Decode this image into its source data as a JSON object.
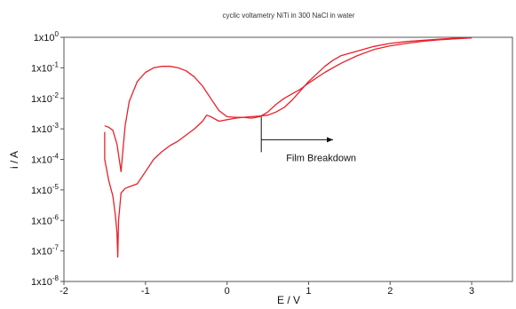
{
  "chart_data": {
    "type": "line",
    "title": "cyclic voltametry NiTi in 300 NaCl in water",
    "xlabel": "E / V",
    "ylabel": "i / A",
    "xlim": [
      -2,
      3.5
    ],
    "ylim_log10": [
      -8,
      0
    ],
    "y_scale": "log",
    "grid": false,
    "legend": "none",
    "color": "#e8202a",
    "x_ticks": [
      {
        "value": -2,
        "label": "-2"
      },
      {
        "value": -1,
        "label": "-1"
      },
      {
        "value": 0,
        "label": "0"
      },
      {
        "value": 1,
        "label": "1"
      },
      {
        "value": 2,
        "label": "2"
      },
      {
        "value": 3,
        "label": "3"
      }
    ],
    "y_ticks": [
      {
        "exp": 0,
        "base": "1x10",
        "sup": "0"
      },
      {
        "exp": -1,
        "base": "1x10",
        "sup": "-1"
      },
      {
        "exp": -2,
        "base": "1x10",
        "sup": "-2"
      },
      {
        "exp": -3,
        "base": "1x10",
        "sup": "-3"
      },
      {
        "exp": -4,
        "base": "1x10",
        "sup": "-4"
      },
      {
        "exp": -5,
        "base": "1x10",
        "sup": "-5"
      },
      {
        "exp": -6,
        "base": "1x10",
        "sup": "-6"
      },
      {
        "exp": -7,
        "base": "1x10",
        "sup": "-7"
      },
      {
        "exp": -8,
        "base": "1x10",
        "sup": "-8"
      }
    ],
    "series": [
      {
        "points_E_log10i": [
          [
            -1.5,
            -3.1
          ],
          [
            -1.5,
            -4.0
          ],
          [
            -1.45,
            -4.7
          ],
          [
            -1.4,
            -5.2
          ],
          [
            -1.37,
            -5.8
          ],
          [
            -1.35,
            -6.4
          ],
          [
            -1.34,
            -7.2
          ],
          [
            -1.33,
            -6.0
          ],
          [
            -1.3,
            -5.1
          ],
          [
            -1.25,
            -4.95
          ],
          [
            -1.2,
            -4.9
          ],
          [
            -1.1,
            -4.8
          ],
          [
            -1.0,
            -4.4
          ],
          [
            -0.9,
            -4.0
          ],
          [
            -0.8,
            -3.75
          ],
          [
            -0.7,
            -3.55
          ],
          [
            -0.6,
            -3.4
          ],
          [
            -0.5,
            -3.2
          ],
          [
            -0.4,
            -3.0
          ],
          [
            -0.3,
            -2.75
          ],
          [
            -0.25,
            -2.55
          ],
          [
            -0.2,
            -2.6
          ],
          [
            -0.1,
            -2.75
          ],
          [
            0.0,
            -2.7
          ],
          [
            0.1,
            -2.65
          ],
          [
            0.2,
            -2.62
          ],
          [
            0.3,
            -2.65
          ],
          [
            0.4,
            -2.6
          ],
          [
            0.5,
            -2.45
          ],
          [
            0.6,
            -2.2
          ],
          [
            0.7,
            -2.0
          ],
          [
            0.8,
            -1.85
          ],
          [
            0.9,
            -1.7
          ],
          [
            1.0,
            -1.5
          ],
          [
            1.2,
            -1.15
          ],
          [
            1.4,
            -0.85
          ],
          [
            1.6,
            -0.6
          ],
          [
            1.8,
            -0.4
          ],
          [
            2.0,
            -0.28
          ],
          [
            2.2,
            -0.2
          ],
          [
            2.4,
            -0.13
          ],
          [
            2.6,
            -0.08
          ],
          [
            2.8,
            -0.05
          ],
          [
            3.0,
            -0.02
          ]
        ]
      },
      {
        "points_E_log10i": [
          [
            3.0,
            -0.02
          ],
          [
            2.8,
            -0.03
          ],
          [
            2.6,
            -0.06
          ],
          [
            2.4,
            -0.1
          ],
          [
            2.2,
            -0.14
          ],
          [
            2.0,
            -0.2
          ],
          [
            1.8,
            -0.3
          ],
          [
            1.6,
            -0.45
          ],
          [
            1.4,
            -0.6
          ],
          [
            1.3,
            -0.75
          ],
          [
            1.2,
            -0.95
          ],
          [
            1.1,
            -1.2
          ],
          [
            1.0,
            -1.45
          ],
          [
            0.9,
            -1.75
          ],
          [
            0.8,
            -2.05
          ],
          [
            0.7,
            -2.3
          ],
          [
            0.6,
            -2.45
          ],
          [
            0.5,
            -2.55
          ],
          [
            0.4,
            -2.58
          ],
          [
            0.3,
            -2.6
          ],
          [
            0.2,
            -2.62
          ],
          [
            0.1,
            -2.62
          ],
          [
            0.0,
            -2.6
          ],
          [
            -0.1,
            -2.4
          ],
          [
            -0.2,
            -2.0
          ],
          [
            -0.3,
            -1.6
          ],
          [
            -0.4,
            -1.3
          ],
          [
            -0.5,
            -1.1
          ],
          [
            -0.6,
            -1.0
          ],
          [
            -0.7,
            -0.95
          ],
          [
            -0.8,
            -0.95
          ],
          [
            -0.9,
            -1.0
          ],
          [
            -1.0,
            -1.15
          ],
          [
            -1.1,
            -1.45
          ],
          [
            -1.2,
            -2.1
          ],
          [
            -1.25,
            -2.9
          ],
          [
            -1.28,
            -3.8
          ],
          [
            -1.3,
            -4.4
          ],
          [
            -1.35,
            -3.5
          ],
          [
            -1.4,
            -3.05
          ],
          [
            -1.45,
            -2.95
          ],
          [
            -1.5,
            -2.9
          ]
        ]
      }
    ],
    "annotation": {
      "text": "Film Breakdown",
      "at": {
        "E": 0.42,
        "log10i": -2.6
      },
      "arrow_to_E": 1.3
    }
  }
}
